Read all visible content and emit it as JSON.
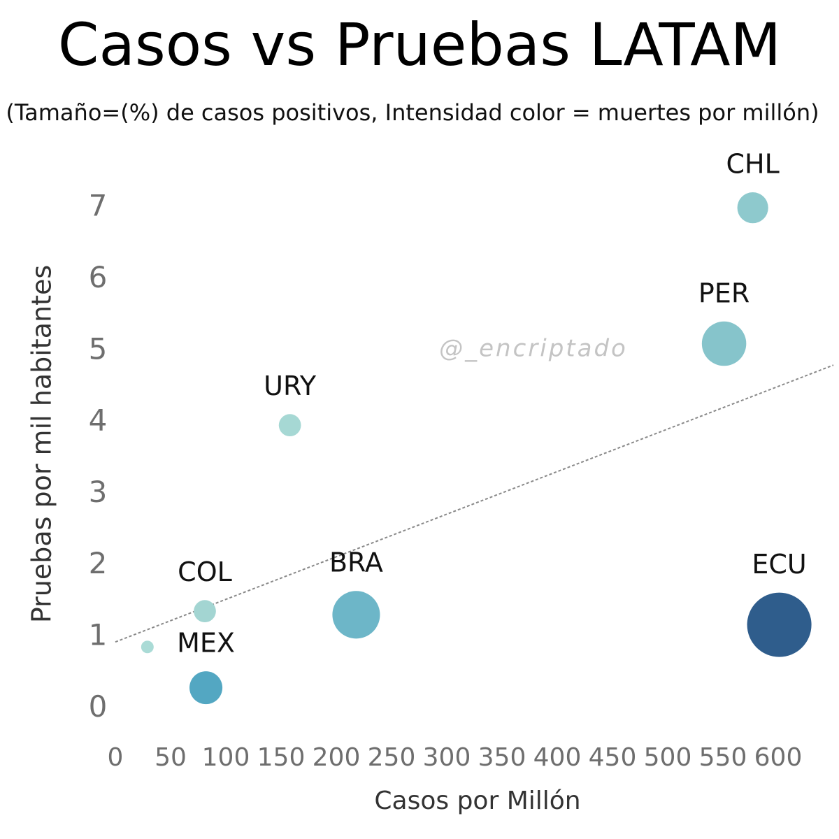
{
  "chart_data": {
    "type": "bubble",
    "title": "Casos vs Pruebas LATAM",
    "subtitle": "(Tamaño=(%) de casos positivos, Intensidad color = muertes por millón)",
    "x_label": "Casos por Millón",
    "y_label": "Pruebas por mil habitantes",
    "watermark": "@_encriptado",
    "labels": [
      "CHL",
      "PER",
      "URY",
      "COL",
      "BRA",
      "ECU",
      "MEX",
      null
    ],
    "x": [
      577,
      551,
      158,
      81,
      218,
      601,
      82,
      29
    ],
    "values": [
      7.0,
      5.1,
      3.96,
      1.36,
      1.31,
      1.17,
      0.29,
      0.86
    ],
    "sizes": [
      9.7,
      20,
      5,
      5,
      23,
      42,
      11,
      1.6
    ],
    "colors": [
      "#8ec9cd",
      "#86c4cb",
      "#a6d8d4",
      "#a3d5d2",
      "#6db6c8",
      "#2f5d8c",
      "#53a7c2",
      "#aadbd6"
    ],
    "trend_line": {
      "x": [
        0,
        650
      ],
      "y": [
        0.93,
        4.8
      ]
    },
    "xlim": [
      0,
      650
    ],
    "ylim": [
      -0.3,
      7.5
    ],
    "xticks": [
      0,
      50,
      100,
      150,
      200,
      250,
      300,
      350,
      400,
      450,
      500,
      550,
      600
    ],
    "yticks": [
      0,
      1,
      2,
      3,
      4,
      5,
      6,
      7
    ]
  }
}
